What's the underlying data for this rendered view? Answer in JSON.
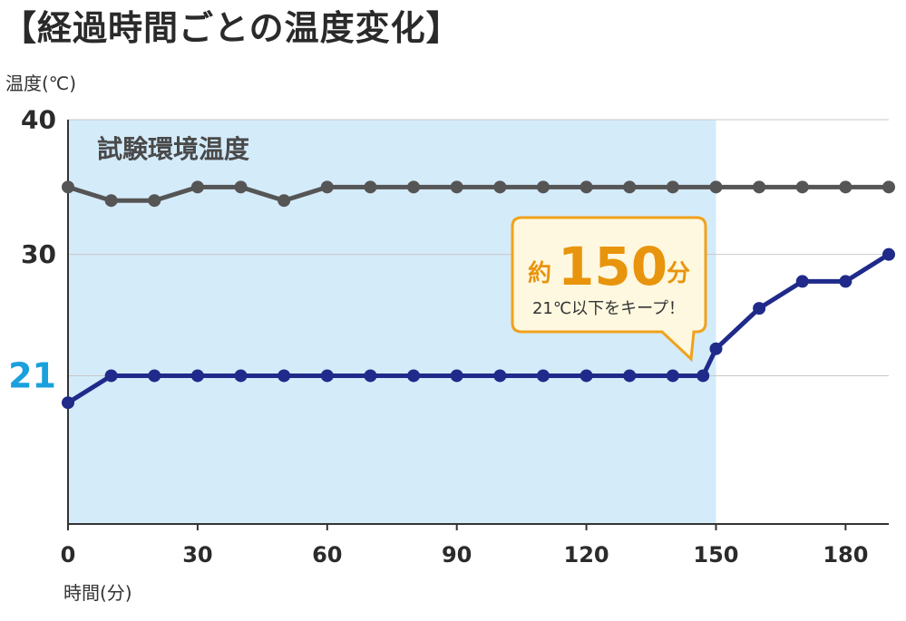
{
  "title": "【経過時間ごとの温度変化】",
  "chart_data": {
    "type": "line",
    "ylabel": "温度(℃)",
    "xlabel": "時間(分)",
    "xlim": [
      0,
      190
    ],
    "ylim": [
      10,
      40
    ],
    "x_ticks": [
      0,
      30,
      60,
      90,
      120,
      150,
      180
    ],
    "y_ticks": [
      {
        "value": 40,
        "label": "40",
        "highlight": false
      },
      {
        "value": 30,
        "label": "30",
        "highlight": false
      },
      {
        "value": 21,
        "label": "21",
        "highlight": true
      }
    ],
    "shaded_region": {
      "x_start": 0,
      "x_end": 150,
      "label": "試験環境温度",
      "color": "#d4ebfa"
    },
    "series": [
      {
        "color": "#555555",
        "x": [
          0,
          10,
          20,
          30,
          40,
          50,
          60,
          70,
          80,
          90,
          100,
          110,
          120,
          130,
          140,
          150,
          160,
          170,
          180,
          190
        ],
        "values": [
          35,
          34,
          34,
          35,
          35,
          34,
          35,
          35,
          35,
          35,
          35,
          35,
          35,
          35,
          35,
          35,
          35,
          35,
          35,
          35
        ]
      },
      {
        "color": "#1f2a8a",
        "x": [
          0,
          10,
          20,
          30,
          40,
          50,
          60,
          70,
          80,
          90,
          100,
          110,
          120,
          130,
          140,
          147,
          150,
          160,
          170,
          180,
          190
        ],
        "values": [
          19,
          21,
          21,
          21,
          21,
          21,
          21,
          21,
          21,
          21,
          21,
          21,
          21,
          21,
          21,
          21,
          23,
          26,
          28,
          28,
          30
        ]
      }
    ],
    "annotation": {
      "prefix": "約",
      "value": "150",
      "suffix": "分",
      "text": "21℃以下をキープ！",
      "color": "#e8940c"
    }
  }
}
